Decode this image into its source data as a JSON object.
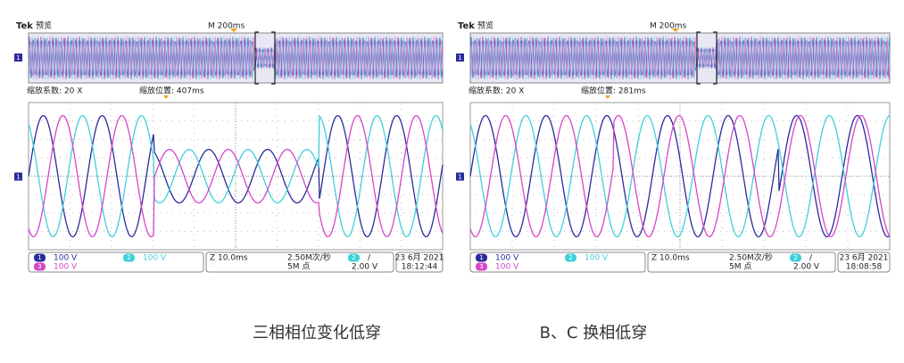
{
  "scopes": [
    {
      "brand": "Tek",
      "mode": "预览",
      "timebase": "M 200ms",
      "zoom_factor": "缩放系数: 20 X",
      "zoom_position": "缩放位置: 407ms",
      "channels": [
        {
          "id": "1",
          "scale": "100 V"
        },
        {
          "id": "2",
          "scale": "100 V"
        },
        {
          "id": "3",
          "scale": "100 V"
        }
      ],
      "horizontal": "Z 10.0ms",
      "sample_rate": "2.50M次/秒",
      "record_length": "5M 点",
      "trigger_channel": "2",
      "trigger_slope": "/",
      "trigger_level": "2.00 V",
      "date": "23 6月 2021",
      "time": "18:12:44",
      "caption": "三相相位变化低穿"
    },
    {
      "brand": "Tek",
      "mode": "预览",
      "timebase": "M 200ms",
      "zoom_factor": "缩放系数: 20 X",
      "zoom_position": "缩放位置: 281ms",
      "channels": [
        {
          "id": "1",
          "scale": "100 V"
        },
        {
          "id": "2",
          "scale": "100 V"
        },
        {
          "id": "3",
          "scale": "100 V"
        }
      ],
      "horizontal": "Z 10.0ms",
      "sample_rate": "2.50M次/秒",
      "record_length": "5M 点",
      "trigger_channel": "2",
      "trigger_slope": "/",
      "trigger_level": "2.00 V",
      "date": "23 6月 2021",
      "time": "18:08:58",
      "caption": "B、C 换相低穿"
    }
  ]
}
